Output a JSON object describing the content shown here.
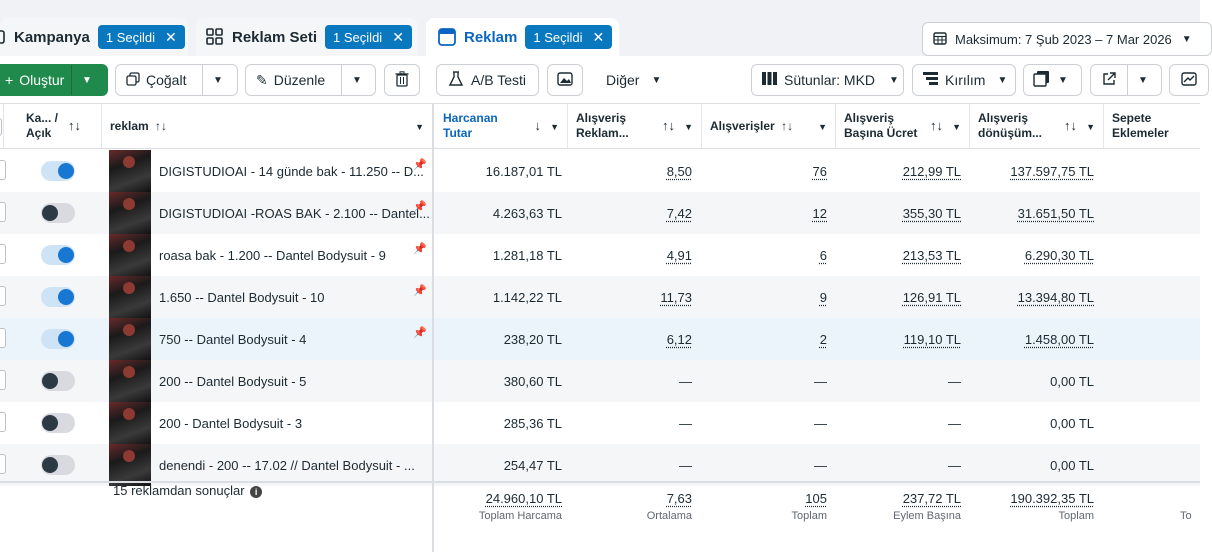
{
  "tabs": [
    {
      "label": "Kampanya",
      "badge": "1 Seçildi"
    },
    {
      "label": "Reklam Seti",
      "badge": "1 Seçildi"
    },
    {
      "label": "Reklam",
      "badge": "1 Seçildi"
    }
  ],
  "date_range": "Maksimum: 7 Şub 2023 – 7 Mar 2026",
  "toolbar": {
    "create": "Oluştur",
    "duplicate": "Çoğalt",
    "edit": "Düzenle",
    "ab_test": "A/B Testi",
    "more": "Diğer",
    "columns": "Sütunlar: MKD",
    "breakdown": "Kırılım"
  },
  "columns": {
    "status": "Ka... / Açık",
    "ad": "reklam",
    "spend_line1": "Harcanan",
    "spend_line2": "Tutar",
    "roas_line1": "Alışveriş",
    "roas_line2": "Reklam...",
    "purchases": "Alışverişler",
    "cpp_line1": "Alışveriş",
    "cpp_line2": "Başına Ücret",
    "conv_line1": "Alışveriş",
    "conv_line2": "dönüşüm...",
    "cart_line1": "Sepete",
    "cart_line2": "Eklemeler"
  },
  "rows": [
    {
      "name": "DIGISTUDIOAI - 14 günde bak - 11.250 -- D...",
      "on": true,
      "pinned": true,
      "spend": "16.187,01 TL",
      "roas": "8,50",
      "purchases": "76",
      "cpp": "212,99 TL",
      "conv": "137.597,75 TL"
    },
    {
      "name": "DIGISTUDIOAI -ROAS BAK - 2.100 -- Dantel...",
      "on": false,
      "pinned": true,
      "spend": "4.263,63 TL",
      "roas": "7,42",
      "purchases": "12",
      "cpp": "355,30 TL",
      "conv": "31.651,50 TL"
    },
    {
      "name": "roasa bak - 1.200 -- Dantel Bodysuit - 9",
      "on": true,
      "pinned": true,
      "spend": "1.281,18 TL",
      "roas": "4,91",
      "purchases": "6",
      "cpp": "213,53 TL",
      "conv": "6.290,30 TL"
    },
    {
      "name": "1.650 -- Dantel Bodysuit - 10",
      "on": true,
      "pinned": true,
      "spend": "1.142,22 TL",
      "roas": "11,73",
      "purchases": "9",
      "cpp": "126,91 TL",
      "conv": "13.394,80 TL"
    },
    {
      "name": "750 -- Dantel Bodysuit - 4",
      "on": true,
      "pinned": true,
      "spend": "238,20 TL",
      "roas": "6,12",
      "purchases": "2",
      "cpp": "119,10 TL",
      "conv": "1.458,00 TL"
    },
    {
      "name": "200 -- Dantel Bodysuit - 5",
      "on": false,
      "pinned": false,
      "spend": "380,60 TL",
      "roas": "—",
      "purchases": "—",
      "cpp": "—",
      "conv": "0,00 TL"
    },
    {
      "name": "200 - Dantel Bodysuit - 3",
      "on": false,
      "pinned": false,
      "spend": "285,36 TL",
      "roas": "—",
      "purchases": "—",
      "cpp": "—",
      "conv": "0,00 TL"
    },
    {
      "name": "denendi - 200 -- 17.02 // Dantel Bodysuit - ...",
      "on": false,
      "pinned": false,
      "spend": "254,47 TL",
      "roas": "—",
      "purchases": "—",
      "cpp": "—",
      "conv": "0,00 TL"
    }
  ],
  "summary": {
    "label": "15 reklamdan sonuçlar",
    "spend": "24.960,10 TL",
    "spend_sub": "Toplam Harcama",
    "roas": "7,63",
    "roas_sub": "Ortalama",
    "purchases": "105",
    "purchases_sub": "Toplam",
    "cpp": "237,72 TL",
    "cpp_sub": "Eylem Başına",
    "conv": "190.392,35 TL",
    "conv_sub": "Toplam",
    "cart_sub": "To"
  }
}
